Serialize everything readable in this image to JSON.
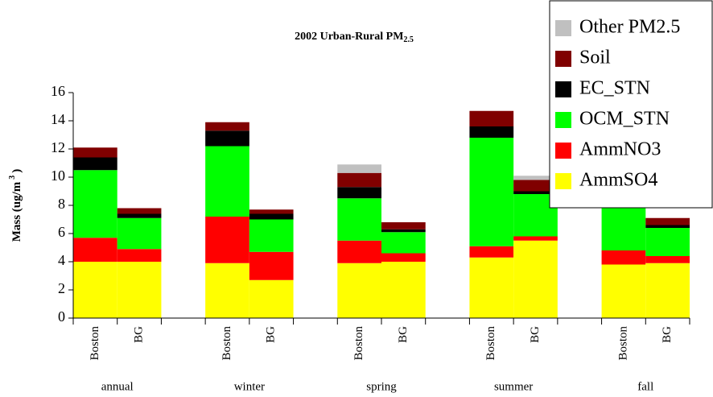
{
  "chart_data": {
    "type": "stacked_bar",
    "title": "2002 Urban-Rural PM",
    "title_subscript": "2.5",
    "y_label": "Mass (ug/m",
    "y_label_superscript": "3",
    "y_label_end": ")",
    "categories": [
      "Boston",
      "BG",
      null,
      "Boston",
      "BG",
      null,
      "Boston",
      "BG",
      null,
      "Boston",
      "BG",
      null,
      "Boston",
      "BG"
    ],
    "groups": [
      "annual",
      "winter",
      "spring",
      "summer",
      "fall"
    ],
    "series": [
      {
        "name": "AmmSO4",
        "color": "#ffff00",
        "values": [
          4.0,
          4.0,
          null,
          3.9,
          2.7,
          null,
          3.9,
          4.0,
          null,
          4.3,
          5.5,
          null,
          3.8,
          3.9
        ]
      },
      {
        "name": "AmmNO3",
        "color": "#ff0000",
        "values": [
          1.7,
          0.9,
          null,
          3.3,
          2.0,
          null,
          1.6,
          0.6,
          null,
          0.8,
          0.3,
          null,
          1.0,
          0.5
        ]
      },
      {
        "name": "OCM_STN",
        "color": "#00ff00",
        "values": [
          4.8,
          2.2,
          null,
          5.0,
          2.3,
          null,
          3.0,
          1.5,
          null,
          7.7,
          3.0,
          null,
          4.2,
          2.0
        ]
      },
      {
        "name": "EC_STN",
        "color": "#000000",
        "values": [
          0.9,
          0.3,
          null,
          1.1,
          0.4,
          null,
          0.8,
          0.2,
          null,
          0.8,
          0.2,
          null,
          0.6,
          0.2
        ]
      },
      {
        "name": "Soil",
        "color": "#800000",
        "values": [
          0.7,
          0.4,
          null,
          0.6,
          0.3,
          null,
          1.0,
          0.5,
          null,
          1.1,
          0.8,
          null,
          0.9,
          0.5
        ]
      },
      {
        "name": "Other PM2.5",
        "color": "#c0c0c0",
        "values": [
          0,
          0,
          null,
          0,
          0,
          null,
          0.6,
          0,
          null,
          0,
          0.3,
          null,
          0,
          0
        ]
      }
    ],
    "ylim": [
      0,
      16
    ],
    "yticks": [
      0,
      2,
      4,
      6,
      8,
      10,
      12,
      14,
      16
    ],
    "grid": false,
    "legend": "top-right"
  }
}
